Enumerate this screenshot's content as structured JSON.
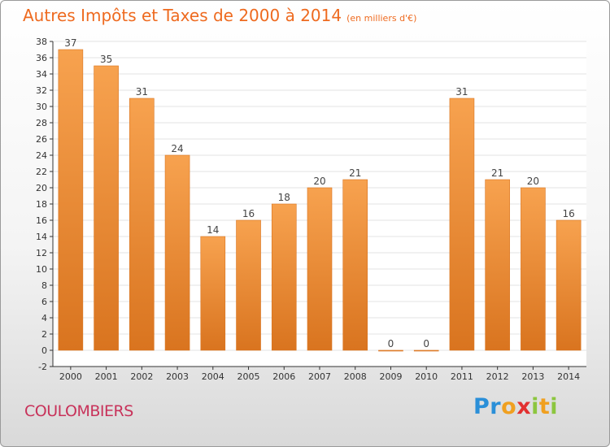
{
  "header": {
    "title": "Autres Impôts et Taxes de 2000 à 2014",
    "unit": "(en milliers d'€)"
  },
  "footer": {
    "place": "COULOMBIERS",
    "logo_letters": [
      "P",
      "r",
      "o",
      "x",
      "i",
      "t",
      "i"
    ],
    "logo_colors": [
      "#2a8fd8",
      "#2a8fd8",
      "#f0a020",
      "#e23030",
      "#8cc63f",
      "#f0a020",
      "#8cc63f"
    ]
  },
  "colors": {
    "bar_light": "#f7a24f",
    "bar_dark": "#d9741f",
    "axis": "#333333",
    "grid": "#e3e3e3",
    "title": "#ee6a1f",
    "place": "#c8325a"
  },
  "chart_data": {
    "type": "bar",
    "title": "Autres Impôts et Taxes de 2000 à 2014",
    "subtitle": "(en milliers d'€)",
    "xlabel": "",
    "ylabel": "",
    "categories": [
      "2000",
      "2001",
      "2002",
      "2003",
      "2004",
      "2005",
      "2006",
      "2007",
      "2008",
      "2009",
      "2010",
      "2011",
      "2012",
      "2013",
      "2014"
    ],
    "values": [
      37,
      35,
      31,
      24,
      14,
      16,
      18,
      20,
      21,
      0,
      0,
      31,
      21,
      20,
      16
    ],
    "ylim": [
      -2,
      38
    ],
    "yticks": [
      -2,
      0,
      2,
      4,
      6,
      8,
      10,
      12,
      14,
      16,
      18,
      20,
      22,
      24,
      26,
      28,
      30,
      32,
      34,
      36,
      38
    ],
    "grid": true,
    "data_labels": true
  }
}
